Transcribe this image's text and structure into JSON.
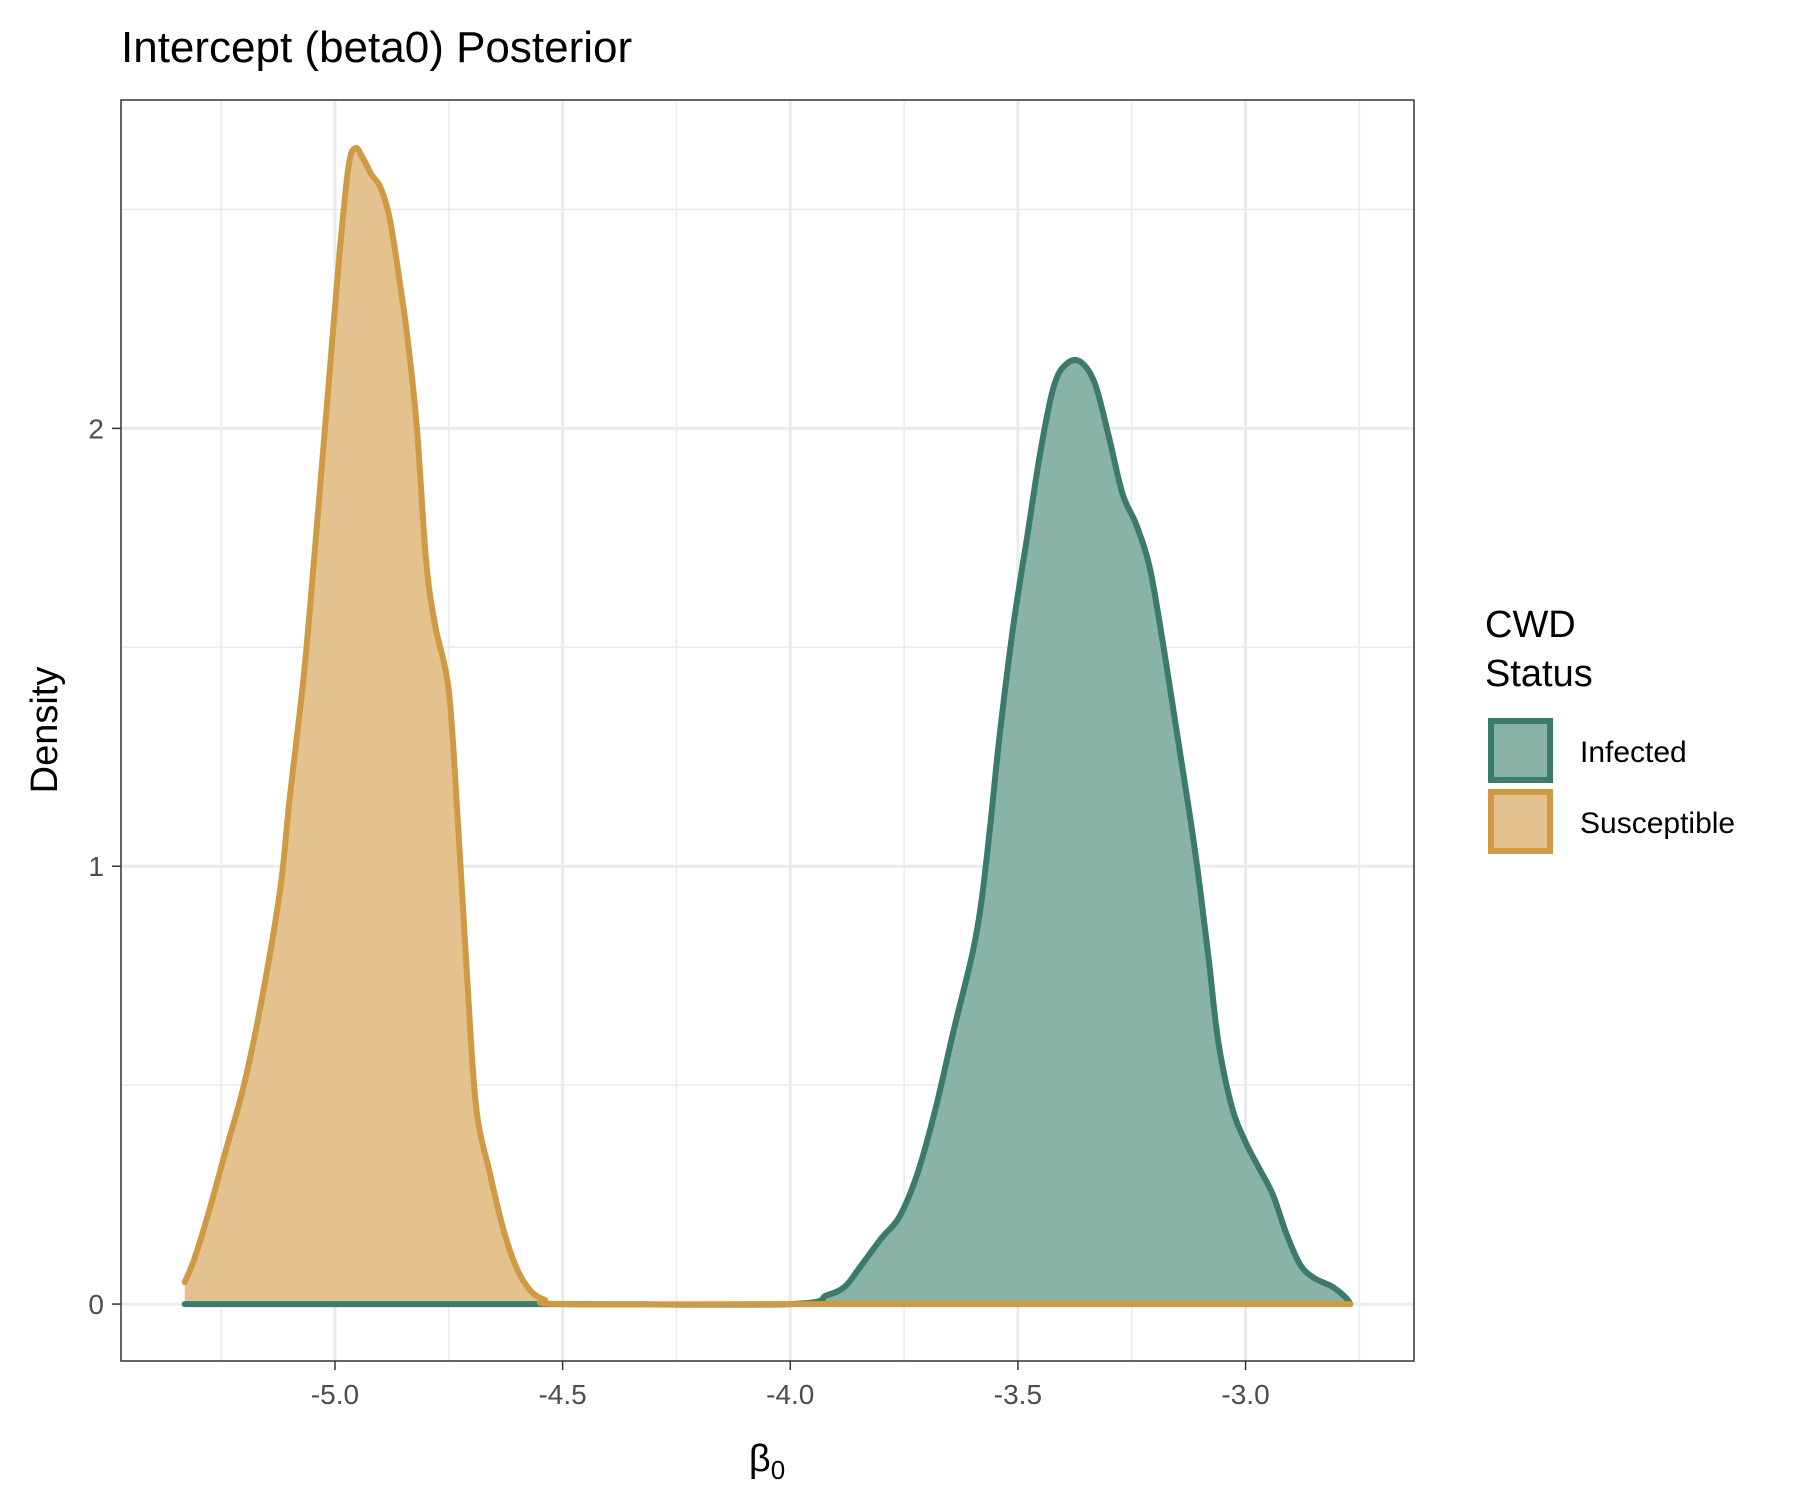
{
  "chart_data": {
    "type": "area",
    "title": "Intercept (beta0) Posterior",
    "xlabel": "β0",
    "xlabel_main": "β",
    "xlabel_sub": "0",
    "ylabel": "Density",
    "xlim": [
      -5.47,
      -2.63
    ],
    "ylim": [
      -0.13,
      2.75
    ],
    "x_ticks": [
      -5.0,
      -4.5,
      -4.0,
      -3.5,
      -3.0
    ],
    "x_tick_labels": [
      "-5.0",
      "-4.5",
      "-4.0",
      "-3.5",
      "-3.0"
    ],
    "y_ticks": [
      0,
      1,
      2
    ],
    "y_tick_labels": [
      "0",
      "1",
      "2"
    ],
    "grid": true,
    "legend": {
      "title_lines": [
        "CWD",
        "Status"
      ],
      "position": "right"
    },
    "series": [
      {
        "name": "Infected",
        "line_color": "#3c7a6b",
        "fill_color": "#8ab3a8",
        "points": [
          [
            -5.33,
            0.0
          ],
          [
            -4.5,
            0.0
          ],
          [
            -4.0,
            0.0
          ],
          [
            -3.92,
            0.02
          ],
          [
            -3.88,
            0.04
          ],
          [
            -3.85,
            0.08
          ],
          [
            -3.8,
            0.15
          ],
          [
            -3.76,
            0.2
          ],
          [
            -3.72,
            0.3
          ],
          [
            -3.68,
            0.45
          ],
          [
            -3.64,
            0.63
          ],
          [
            -3.6,
            0.8
          ],
          [
            -3.58,
            0.92
          ],
          [
            -3.56,
            1.1
          ],
          [
            -3.54,
            1.3
          ],
          [
            -3.51,
            1.55
          ],
          [
            -3.48,
            1.75
          ],
          [
            -3.45,
            1.95
          ],
          [
            -3.42,
            2.1
          ],
          [
            -3.39,
            2.15
          ],
          [
            -3.36,
            2.15
          ],
          [
            -3.33,
            2.1
          ],
          [
            -3.3,
            1.98
          ],
          [
            -3.27,
            1.85
          ],
          [
            -3.24,
            1.78
          ],
          [
            -3.21,
            1.68
          ],
          [
            -3.18,
            1.5
          ],
          [
            -3.15,
            1.3
          ],
          [
            -3.12,
            1.1
          ],
          [
            -3.1,
            0.95
          ],
          [
            -3.08,
            0.78
          ],
          [
            -3.06,
            0.6
          ],
          [
            -3.03,
            0.45
          ],
          [
            -3.0,
            0.37
          ],
          [
            -2.97,
            0.31
          ],
          [
            -2.94,
            0.25
          ],
          [
            -2.91,
            0.16
          ],
          [
            -2.88,
            0.09
          ],
          [
            -2.85,
            0.06
          ],
          [
            -2.81,
            0.04
          ],
          [
            -2.78,
            0.015
          ],
          [
            -2.77,
            0.0
          ]
        ]
      },
      {
        "name": "Susceptible",
        "line_color": "#d09a45",
        "fill_color": "#e3c28f",
        "points": [
          [
            -5.33,
            0.05
          ],
          [
            -5.31,
            0.1
          ],
          [
            -5.28,
            0.2
          ],
          [
            -5.24,
            0.35
          ],
          [
            -5.2,
            0.5
          ],
          [
            -5.16,
            0.7
          ],
          [
            -5.12,
            0.95
          ],
          [
            -5.1,
            1.15
          ],
          [
            -5.07,
            1.42
          ],
          [
            -5.05,
            1.65
          ],
          [
            -5.03,
            1.9
          ],
          [
            -5.01,
            2.15
          ],
          [
            -4.99,
            2.4
          ],
          [
            -4.97,
            2.6
          ],
          [
            -4.955,
            2.64
          ],
          [
            -4.94,
            2.62
          ],
          [
            -4.92,
            2.58
          ],
          [
            -4.9,
            2.55
          ],
          [
            -4.88,
            2.48
          ],
          [
            -4.86,
            2.35
          ],
          [
            -4.84,
            2.2
          ],
          [
            -4.82,
            2.0
          ],
          [
            -4.8,
            1.7
          ],
          [
            -4.78,
            1.55
          ],
          [
            -4.75,
            1.4
          ],
          [
            -4.73,
            1.1
          ],
          [
            -4.71,
            0.75
          ],
          [
            -4.69,
            0.45
          ],
          [
            -4.66,
            0.3
          ],
          [
            -4.63,
            0.17
          ],
          [
            -4.6,
            0.08
          ],
          [
            -4.57,
            0.03
          ],
          [
            -4.54,
            0.01
          ],
          [
            -4.5,
            0.0
          ],
          [
            -4.0,
            0.0
          ],
          [
            -3.5,
            0.0
          ],
          [
            -3.0,
            0.0
          ],
          [
            -2.77,
            0.0
          ]
        ]
      }
    ]
  }
}
